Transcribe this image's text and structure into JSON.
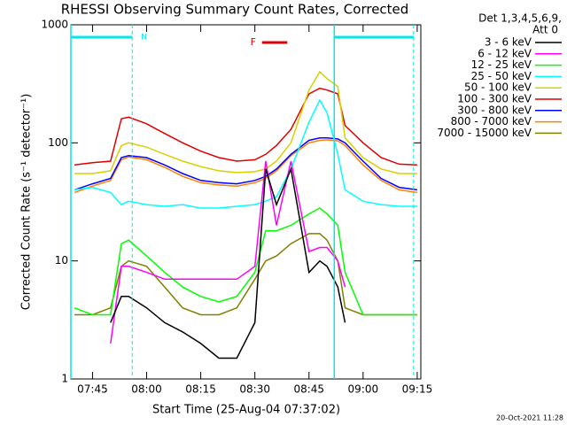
{
  "chart_data": {
    "type": "line",
    "title": "RHESSI Observing Summary Count Rates, Corrected",
    "xlabel": "Start Time (25-Aug-04 07:37:02)",
    "ylabel": "Corrected Count Rate (s⁻¹ detector⁻¹)",
    "legend_title": [
      "Det 1,3,4,5,6,9,",
      "Att 0"
    ],
    "footer": "20-Oct-2021 11:28",
    "log_y": true,
    "ylim": [
      1,
      1000
    ],
    "yticks": [
      1,
      10,
      100,
      1000
    ],
    "xlim": [
      "07:39",
      "09:16"
    ],
    "xticks": [
      "07:45",
      "08:00",
      "08:15",
      "08:30",
      "08:45",
      "09:00",
      "09:15"
    ],
    "night": {
      "label": "N",
      "color": "#00e8e8",
      "intervals": [
        [
          "07:39",
          "07:56"
        ],
        [
          "08:52",
          "09:14"
        ]
      ]
    },
    "flare": {
      "label": "F",
      "color": "#e00000",
      "interval": [
        "08:31",
        "08:39"
      ]
    },
    "x": [
      "07:40",
      "07:45",
      "07:50",
      "07:53",
      "07:55",
      "08:00",
      "08:05",
      "08:10",
      "08:15",
      "08:20",
      "08:25",
      "08:30",
      "08:33",
      "08:36",
      "08:40",
      "08:45",
      "08:48",
      "08:50",
      "08:53",
      "08:55",
      "09:00",
      "09:05",
      "09:10",
      "09:15"
    ],
    "series": [
      {
        "name": "3 - 6 keV",
        "color": "#000000",
        "values": [
          null,
          null,
          3,
          5,
          5,
          4,
          3,
          2.5,
          2,
          1.5,
          1.5,
          3,
          60,
          30,
          60,
          8,
          10,
          9,
          6,
          3,
          null,
          null,
          null,
          null
        ]
      },
      {
        "name": "6 - 12 keV",
        "color": "#ff00ff",
        "values": [
          null,
          null,
          2,
          9,
          9,
          8,
          7,
          7,
          7,
          7,
          7,
          9,
          70,
          20,
          70,
          12,
          13,
          13,
          10,
          6,
          null,
          null,
          null,
          null
        ]
      },
      {
        "name": "12 - 25 keV",
        "color": "#00ff00",
        "values": [
          4,
          3.5,
          3.5,
          14,
          15,
          11,
          8,
          6,
          5,
          4.5,
          5,
          8,
          18,
          18,
          20,
          25,
          28,
          25,
          20,
          8,
          3.5,
          3.5,
          3.5,
          3.5
        ]
      },
      {
        "name": "25 - 50 keV",
        "color": "#00ffff",
        "values": [
          40,
          42,
          38,
          30,
          32,
          30,
          29,
          30,
          28,
          28,
          29,
          30,
          32,
          35,
          60,
          150,
          230,
          180,
          80,
          40,
          32,
          30,
          29,
          29
        ]
      },
      {
        "name": "50 - 100 keV",
        "color": "#d8d000",
        "values": [
          55,
          55,
          58,
          95,
          100,
          92,
          80,
          70,
          63,
          58,
          56,
          57,
          60,
          70,
          100,
          280,
          400,
          350,
          300,
          110,
          75,
          60,
          55,
          55
        ]
      },
      {
        "name": "100 - 300 keV",
        "color": "#e00000",
        "values": [
          65,
          68,
          70,
          160,
          165,
          145,
          120,
          100,
          85,
          75,
          70,
          72,
          80,
          95,
          130,
          260,
          290,
          280,
          260,
          140,
          100,
          75,
          66,
          65
        ]
      },
      {
        "name": "300 - 800 keV",
        "color": "#0000ff",
        "values": [
          40,
          45,
          50,
          75,
          78,
          75,
          65,
          55,
          48,
          46,
          45,
          48,
          52,
          60,
          80,
          105,
          110,
          110,
          108,
          100,
          70,
          50,
          42,
          40
        ]
      },
      {
        "name": "800 - 7000 keV",
        "color": "#ff8000",
        "values": [
          38,
          43,
          48,
          72,
          76,
          72,
          62,
          52,
          46,
          44,
          43,
          46,
          50,
          58,
          78,
          100,
          105,
          106,
          104,
          95,
          65,
          48,
          40,
          38
        ]
      },
      {
        "name": "7000 - 15000 keV",
        "color": "#808000",
        "values": [
          3.5,
          3.5,
          4,
          9,
          10,
          9,
          6,
          4,
          3.5,
          3.5,
          4,
          7,
          10,
          11,
          14,
          17,
          17,
          15,
          10,
          4,
          3.5,
          3.5,
          3.5,
          3.5
        ]
      }
    ]
  }
}
